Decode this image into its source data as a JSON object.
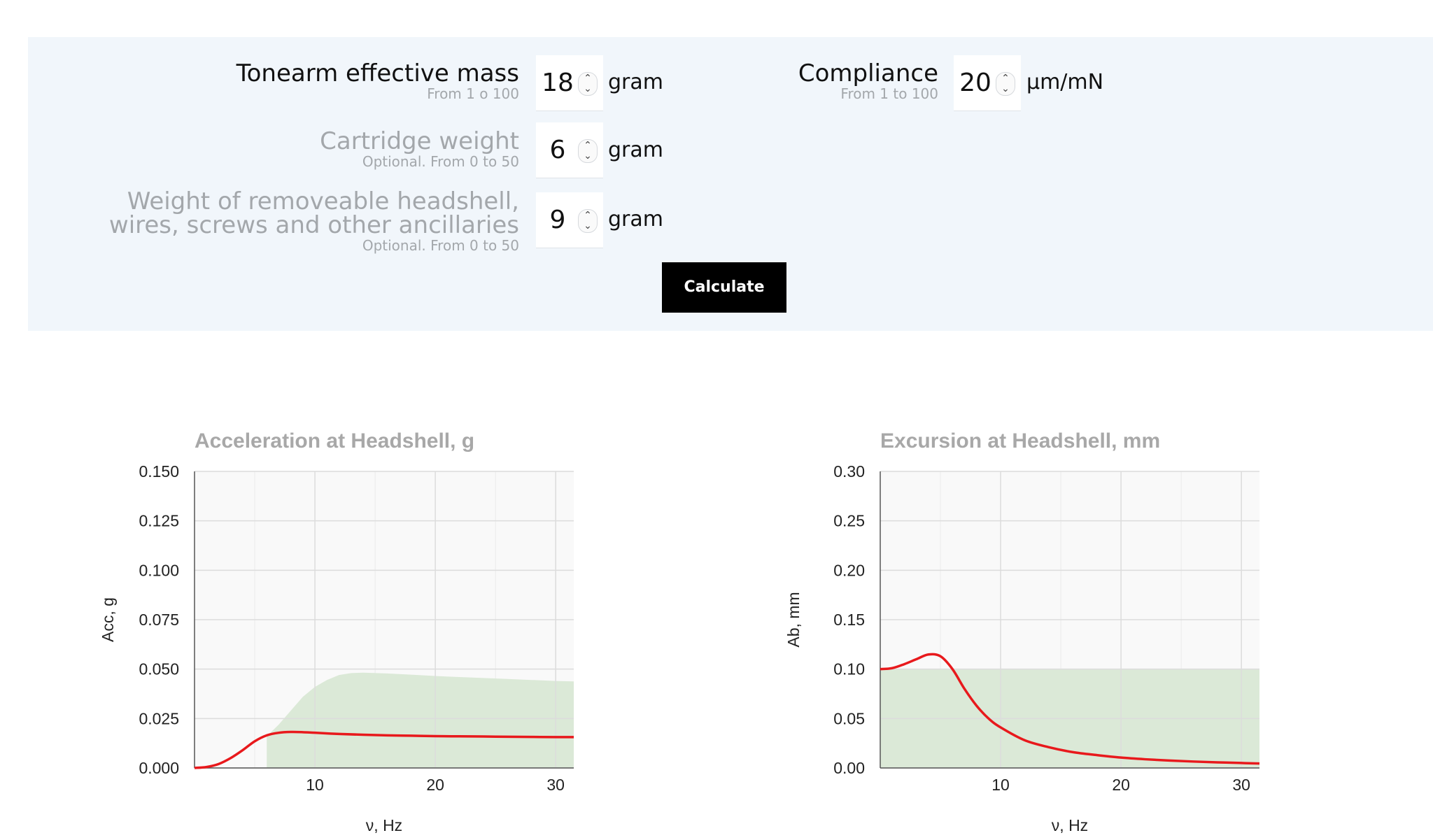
{
  "form": {
    "tonearm": {
      "label": "Tonearm effective mass",
      "hint": "From 1 o 100",
      "value": "18",
      "unit": "gram"
    },
    "compliance": {
      "label": "Compliance",
      "hint": "From 1 to 100",
      "value": "20",
      "unit": "µm/mN"
    },
    "cartridge": {
      "label": "Cartridge weight",
      "hint": "Optional. From 0 to 50",
      "value": "6",
      "unit": "gram"
    },
    "headshell": {
      "label_line1": "Weight of removeable headshell,",
      "label_line2": "wires, screws and other ancillaries",
      "hint": "Optional. From 0 to 50",
      "value": "9",
      "unit": "gram"
    },
    "calculate_label": "Calculate",
    "spinner_up": "⌃",
    "spinner_down": "⌄"
  },
  "chart_data": [
    {
      "type": "line",
      "title": "Acceleration at Headshell, g",
      "xlabel": "ν, Hz",
      "ylabel": "Acc, g",
      "xlim": [
        0,
        31.5
      ],
      "ylim": [
        0,
        0.15
      ],
      "xticks": [
        "10",
        "20",
        "30"
      ],
      "yticks": [
        "0.000",
        "0.025",
        "0.050",
        "0.075",
        "0.100",
        "0.125",
        "0.150"
      ],
      "grid": true,
      "legend": "none",
      "colors": {
        "line": "#e8191c",
        "area": "#dbe9d7",
        "plot_bg": "#f9f9f9",
        "grid": "#dcdcdc"
      },
      "series": [
        {
          "kind": "line",
          "x": [
            0,
            1,
            2,
            3,
            4,
            5,
            6,
            7,
            8,
            9,
            10,
            12,
            14,
            16,
            18,
            20,
            22,
            24,
            26,
            28,
            30,
            31.5
          ],
          "y": [
            0,
            0.0005,
            0.002,
            0.005,
            0.009,
            0.0135,
            0.0165,
            0.0178,
            0.0182,
            0.0181,
            0.0178,
            0.0172,
            0.0168,
            0.0165,
            0.0163,
            0.0161,
            0.016,
            0.0159,
            0.0158,
            0.0157,
            0.0156,
            0.0156
          ]
        },
        {
          "kind": "area",
          "x": [
            6,
            7,
            8,
            9,
            10,
            11,
            12,
            13,
            14,
            16,
            18,
            20,
            22,
            24,
            26,
            28,
            30,
            31.5
          ],
          "y": [
            0.016,
            0.022,
            0.029,
            0.036,
            0.041,
            0.0445,
            0.047,
            0.048,
            0.0482,
            0.0478,
            0.0472,
            0.0465,
            0.046,
            0.0455,
            0.045,
            0.0445,
            0.044,
            0.0438
          ]
        }
      ]
    },
    {
      "type": "line",
      "title": "Excursion at Headshell, mm",
      "xlabel": "ν, Hz",
      "ylabel": "Ab, mm",
      "xlim": [
        0,
        31.5
      ],
      "ylim": [
        0,
        0.3
      ],
      "xticks": [
        "10",
        "20",
        "30"
      ],
      "yticks": [
        "0.00",
        "0.05",
        "0.10",
        "0.15",
        "0.20",
        "0.25",
        "0.30"
      ],
      "grid": true,
      "legend": "none",
      "colors": {
        "line": "#e8191c",
        "area": "#dbe9d7",
        "plot_bg": "#f9f9f9",
        "grid": "#dcdcdc"
      },
      "series": [
        {
          "kind": "line",
          "x": [
            0,
            1,
            2,
            3,
            4,
            5,
            6,
            7,
            8,
            9,
            10,
            12,
            14,
            16,
            18,
            20,
            22,
            24,
            26,
            28,
            30,
            31.5
          ],
          "y": [
            0.1,
            0.101,
            0.105,
            0.11,
            0.1148,
            0.113,
            0.1,
            0.08,
            0.063,
            0.05,
            0.041,
            0.028,
            0.021,
            0.016,
            0.013,
            0.0105,
            0.0088,
            0.0075,
            0.0065,
            0.0057,
            0.005,
            0.0045
          ]
        },
        {
          "kind": "area",
          "x": [
            0,
            31.5
          ],
          "y": [
            0.1,
            0.1
          ]
        }
      ]
    }
  ]
}
